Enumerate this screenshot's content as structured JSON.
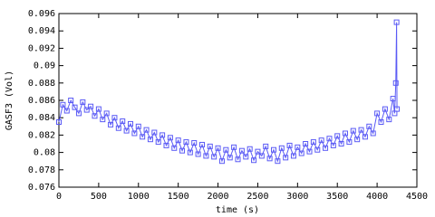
{
  "chart_data": {
    "type": "line",
    "x_label": "time (s)",
    "y_label": "GASF3 (Vol)",
    "color": "#5a5af5",
    "marker": "square",
    "x": [
      0,
      50,
      100,
      150,
      200,
      250,
      300,
      350,
      400,
      450,
      500,
      550,
      600,
      650,
      700,
      750,
      800,
      850,
      900,
      950,
      1000,
      1050,
      1100,
      1150,
      1200,
      1250,
      1300,
      1350,
      1400,
      1450,
      1500,
      1550,
      1600,
      1650,
      1700,
      1750,
      1800,
      1850,
      1900,
      1950,
      2000,
      2050,
      2100,
      2150,
      2200,
      2250,
      2300,
      2350,
      2400,
      2450,
      2500,
      2550,
      2600,
      2650,
      2700,
      2750,
      2800,
      2850,
      2900,
      2950,
      3000,
      3050,
      3100,
      3150,
      3200,
      3250,
      3300,
      3350,
      3400,
      3450,
      3500,
      3550,
      3600,
      3650,
      3700,
      3750,
      3800,
      3850,
      3900,
      3950,
      4000,
      4050,
      4100,
      4150,
      4200,
      4220,
      4235,
      4245,
      4250
    ],
    "values": [
      0.0835,
      0.0855,
      0.0848,
      0.086,
      0.0852,
      0.0845,
      0.0858,
      0.0849,
      0.0853,
      0.0842,
      0.085,
      0.0838,
      0.0845,
      0.0832,
      0.084,
      0.0828,
      0.0836,
      0.0825,
      0.0833,
      0.0822,
      0.083,
      0.0818,
      0.0826,
      0.0815,
      0.0823,
      0.0812,
      0.082,
      0.0808,
      0.0817,
      0.0805,
      0.0814,
      0.0802,
      0.0812,
      0.08,
      0.0811,
      0.0798,
      0.0809,
      0.0796,
      0.0807,
      0.0795,
      0.0805,
      0.079,
      0.0803,
      0.0794,
      0.0806,
      0.0792,
      0.0802,
      0.0795,
      0.0804,
      0.0791,
      0.0801,
      0.0796,
      0.0807,
      0.0793,
      0.0803,
      0.079,
      0.0805,
      0.0794,
      0.0808,
      0.0796,
      0.0806,
      0.0799,
      0.081,
      0.0801,
      0.0812,
      0.0803,
      0.0814,
      0.0805,
      0.0816,
      0.0808,
      0.0819,
      0.081,
      0.0822,
      0.0812,
      0.0825,
      0.0815,
      0.0826,
      0.0818,
      0.083,
      0.0822,
      0.0845,
      0.0835,
      0.085,
      0.0838,
      0.0862,
      0.0845,
      0.088,
      0.095,
      0.085
    ],
    "xlim": [
      0,
      4500
    ],
    "xticks": [
      0,
      500,
      1000,
      1500,
      2000,
      2500,
      3000,
      3500,
      4000,
      4500
    ],
    "ylim": [
      0.076,
      0.096
    ],
    "yticks": [
      0.076,
      0.078,
      0.08,
      0.082,
      0.084,
      0.086,
      0.088,
      0.09,
      0.092,
      0.094,
      0.096
    ]
  }
}
